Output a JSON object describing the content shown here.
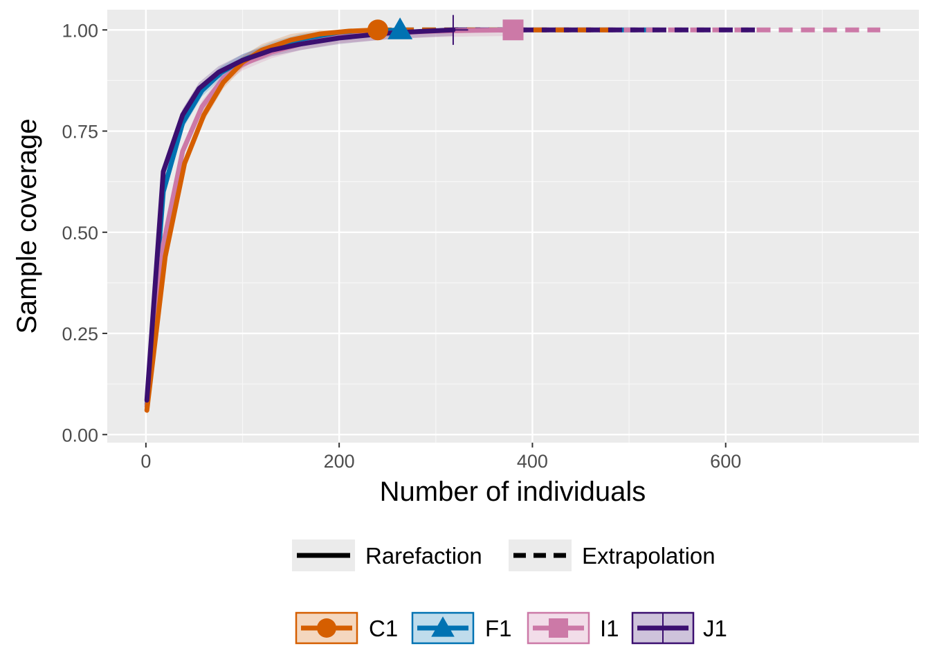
{
  "chart_data": {
    "type": "line",
    "title": "",
    "xlabel": "Number of individuals",
    "ylabel": "Sample coverage",
    "xlim": [
      -40,
      800
    ],
    "ylim": [
      -0.02,
      1.05
    ],
    "x_ticks": [
      0,
      200,
      400,
      600
    ],
    "x_tick_labels": [
      "0",
      "200",
      "400",
      "600"
    ],
    "y_ticks": [
      0,
      0.25,
      0.5,
      0.75,
      1.0
    ],
    "y_tick_labels": [
      "0.00",
      "0.25",
      "0.50",
      "0.75",
      "1.00"
    ],
    "grid": true,
    "panel_background": "#ebebeb",
    "line_type_legend": {
      "position": "bottom",
      "entries": [
        {
          "label": "Rarefaction",
          "style": "solid"
        },
        {
          "label": "Extrapolation",
          "style": "dashed"
        }
      ]
    },
    "series_legend": {
      "position": "bottom",
      "entries": [
        "C1",
        "F1",
        "I1",
        "J1"
      ]
    },
    "series": [
      {
        "name": "C1",
        "color": "#d55e00",
        "shape": "circle",
        "observed": {
          "x": 240,
          "y": 1.0
        },
        "rarefaction": {
          "x": [
            1,
            20,
            40,
            60,
            80,
            100,
            120,
            150,
            180,
            210,
            240
          ],
          "y": [
            0.06,
            0.44,
            0.67,
            0.79,
            0.87,
            0.92,
            0.95,
            0.975,
            0.99,
            0.997,
            1.0
          ]
        },
        "extrapolation": {
          "x": [
            240,
            480
          ],
          "y": [
            1.0,
            1.0
          ]
        }
      },
      {
        "name": "F1",
        "color": "#0072b2",
        "shape": "triangle",
        "observed": {
          "x": 263,
          "y": 1.0
        },
        "rarefaction": {
          "x": [
            1,
            18,
            38,
            58,
            78,
            100,
            130,
            160,
            200,
            230,
            263
          ],
          "y": [
            0.075,
            0.6,
            0.77,
            0.85,
            0.895,
            0.925,
            0.955,
            0.975,
            0.99,
            0.996,
            1.0
          ]
        },
        "extrapolation": {
          "x": [
            263,
            526
          ],
          "y": [
            1.0,
            1.0
          ]
        }
      },
      {
        "name": "I1",
        "color": "#cc79a7",
        "shape": "square",
        "observed": {
          "x": 380,
          "y": 1.0
        },
        "rarefaction": {
          "x": [
            1,
            18,
            38,
            58,
            80,
            100,
            130,
            160,
            200,
            250,
            300,
            340,
            380
          ],
          "y": [
            0.07,
            0.47,
            0.7,
            0.81,
            0.88,
            0.915,
            0.945,
            0.965,
            0.982,
            0.992,
            0.997,
            0.999,
            1.0
          ]
        },
        "extrapolation": {
          "x": [
            380,
            760
          ],
          "y": [
            1.0,
            1.0
          ]
        }
      },
      {
        "name": "J1",
        "color": "#3b0f70",
        "shape": "plus",
        "observed": {
          "x": 318,
          "y": 1.0
        },
        "rarefaction": {
          "x": [
            1,
            18,
            38,
            55,
            75,
            100,
            130,
            160,
            200,
            250,
            290,
            318
          ],
          "y": [
            0.085,
            0.65,
            0.79,
            0.855,
            0.895,
            0.925,
            0.95,
            0.965,
            0.98,
            0.992,
            0.997,
            1.0
          ]
        },
        "extrapolation": {
          "x": [
            318,
            636
          ],
          "y": [
            1.0,
            1.0
          ]
        }
      }
    ]
  }
}
